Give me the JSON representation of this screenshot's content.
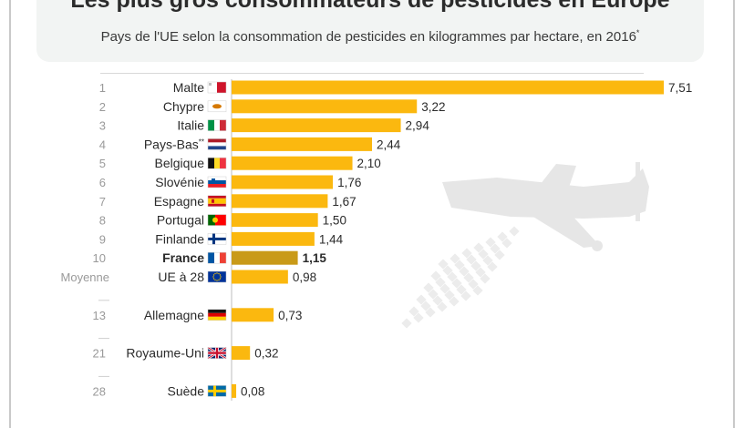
{
  "header": {
    "title": "Les plus gros consommateurs de pesticides en Europe",
    "subtitle": "Pays de l'UE selon la consommation de pesticides en kilogrammes par hectare, en 2016",
    "subtitle_mark": "*"
  },
  "colors": {
    "bar": "#fbb80f",
    "bar_highlight": "#c99a18",
    "axis": "#bdbdbd",
    "rank_text": "#9a9a9a",
    "watermark": "#e6e6e6"
  },
  "chart_data": {
    "type": "bar",
    "orientation": "horizontal",
    "title": "Les plus gros consommateurs de pesticides en Europe",
    "subtitle": "Pays de l'UE selon la consommation de pesticides en kilogrammes par hectare, en 2016*",
    "xlim": [
      0,
      7.51
    ],
    "grid": false,
    "decimal_separator": ",",
    "rows": [
      {
        "rank": "1",
        "label": "Malte",
        "mark": "",
        "value": 7.51,
        "value_label": "7,51",
        "flag": "malta-flag-icon"
      },
      {
        "rank": "2",
        "label": "Chypre",
        "mark": "",
        "value": 3.22,
        "value_label": "3,22",
        "flag": "cyprus-flag-icon"
      },
      {
        "rank": "3",
        "label": "Italie",
        "mark": "",
        "value": 2.94,
        "value_label": "2,94",
        "flag": "italy-flag-icon"
      },
      {
        "rank": "4",
        "label": "Pays-Bas",
        "mark": "**",
        "value": 2.44,
        "value_label": "2,44",
        "flag": "netherlands-flag-icon"
      },
      {
        "rank": "5",
        "label": "Belgique",
        "mark": "",
        "value": 2.1,
        "value_label": "2,10",
        "flag": "belgium-flag-icon"
      },
      {
        "rank": "6",
        "label": "Slovénie",
        "mark": "",
        "value": 1.76,
        "value_label": "1,76",
        "flag": "slovenia-flag-icon"
      },
      {
        "rank": "7",
        "label": "Espagne",
        "mark": "",
        "value": 1.67,
        "value_label": "1,67",
        "flag": "spain-flag-icon"
      },
      {
        "rank": "8",
        "label": "Portugal",
        "mark": "",
        "value": 1.5,
        "value_label": "1,50",
        "flag": "portugal-flag-icon"
      },
      {
        "rank": "9",
        "label": "Finlande",
        "mark": "",
        "value": 1.44,
        "value_label": "1,44",
        "flag": "finland-flag-icon"
      },
      {
        "rank": "10",
        "label": "France",
        "mark": "",
        "value": 1.15,
        "value_label": "1,15",
        "flag": "france-flag-icon",
        "highlight": true
      },
      {
        "rank": "Moyenne",
        "label": "UE à 28",
        "mark": "",
        "value": 0.98,
        "value_label": "0,98",
        "flag": "eu-flag-icon"
      },
      {
        "rank": "13",
        "label": "Allemagne",
        "mark": "",
        "value": 0.73,
        "value_label": "0,73",
        "flag": "germany-flag-icon",
        "gap_before": true
      },
      {
        "rank": "21",
        "label": "Royaume-Uni",
        "mark": "",
        "value": 0.32,
        "value_label": "0,32",
        "flag": "uk-flag-icon",
        "gap_before": true
      },
      {
        "rank": "28",
        "label": "Suède",
        "mark": "",
        "value": 0.08,
        "value_label": "0,08",
        "flag": "sweden-flag-icon",
        "gap_before": true
      }
    ]
  }
}
